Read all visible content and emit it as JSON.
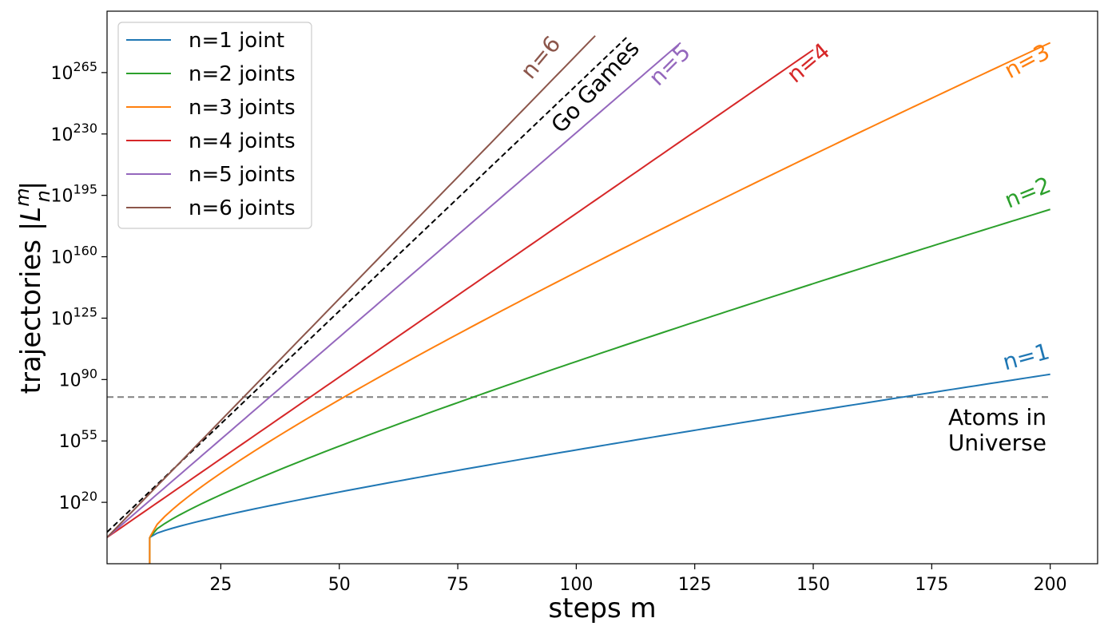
{
  "chart_data": {
    "type": "line",
    "xlabel": "steps m",
    "ylabel_text": "trajectories |",
    "ylabel_symbol": "L",
    "ylabel_sup": "m",
    "ylabel_sub": "n",
    "ylabel_end": "|",
    "xlim": [
      1,
      210
    ],
    "ylim_exponent": [
      -15,
      300
    ],
    "y_scale": "log10",
    "xticks": [
      25,
      50,
      75,
      100,
      125,
      150,
      175,
      200
    ],
    "yticks": [
      {
        "base": "10",
        "exp": "20",
        "e": 20
      },
      {
        "base": "10",
        "exp": "55",
        "e": 55
      },
      {
        "base": "10",
        "exp": "90",
        "e": 90
      },
      {
        "base": "10",
        "exp": "125",
        "e": 125
      },
      {
        "base": "10",
        "exp": "160",
        "e": 160
      },
      {
        "base": "10",
        "exp": "195",
        "e": 195
      },
      {
        "base": "10",
        "exp": "230",
        "e": 230
      },
      {
        "base": "10",
        "exp": "265",
        "e": 265
      }
    ],
    "grid": false,
    "legend_position": "top-left",
    "series": [
      {
        "name": "n=1 joint",
        "label": "n=1",
        "color": "#1f77b4",
        "start": 10,
        "end": 200,
        "start_exp": 0,
        "end_exp": 93
      },
      {
        "name": "n=2 joints",
        "label": "n=2",
        "color": "#2ca02c",
        "start": 10,
        "end": 200,
        "start_exp": 0,
        "end_exp": 187
      },
      {
        "name": "n=3 joints",
        "label": "n=3",
        "color": "#ff7f0e",
        "start": 10,
        "end": 200,
        "start_exp": 0,
        "end_exp": 282
      },
      {
        "name": "n=4 joints",
        "label": "n=4",
        "color": "#d62728",
        "start": 1,
        "end": 150,
        "start_exp": 0,
        "end_exp": 278
      },
      {
        "name": "n=5 joints",
        "label": "n=5",
        "color": "#9467bd",
        "start": 1,
        "end": 122,
        "start_exp": 0,
        "end_exp": 282
      },
      {
        "name": "n=6 joints",
        "label": "n=6",
        "color": "#8c564b",
        "start": 1,
        "end": 104,
        "start_exp": 0,
        "end_exp": 286
      }
    ],
    "reference_lines": {
      "go_games": {
        "label": "Go Games",
        "color": "#000000",
        "x_start": 1,
        "x_end": 111,
        "start_exp": 3,
        "end_exp": 286
      },
      "atoms": {
        "label_line1": "Atoms in",
        "label_line2": "Universe",
        "color": "#808080",
        "y_exp": 80
      }
    }
  }
}
